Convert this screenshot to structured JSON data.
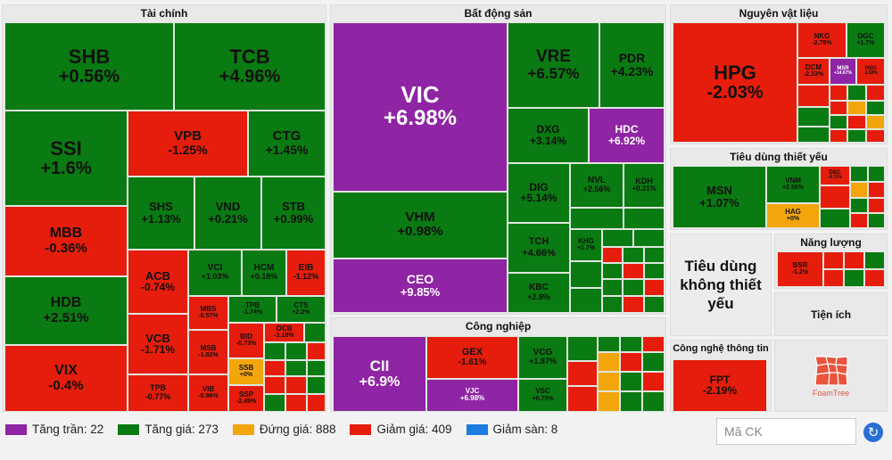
{
  "sectors": {
    "finance": "Tài chính",
    "realestate": "Bất động sản",
    "materials": "Nguyên vật liệu",
    "staples": "Tiêu dùng thiết yếu",
    "energy": "Năng lượng",
    "discretionary": "Tiêu dùng không thiết yếu",
    "utilities": "Tiện ích",
    "industrial": "Công nghiệp",
    "it": "Công nghệ thông tin"
  },
  "stocks": {
    "shb": {
      "sym": "SHB",
      "chg": "+0.56%"
    },
    "tcb": {
      "sym": "TCB",
      "chg": "+4.96%"
    },
    "ssi": {
      "sym": "SSI",
      "chg": "+1.6%"
    },
    "vpb": {
      "sym": "VPB",
      "chg": "-1.25%"
    },
    "ctg": {
      "sym": "CTG",
      "chg": "+1.45%"
    },
    "mbb": {
      "sym": "MBB",
      "chg": "-0.36%"
    },
    "shs": {
      "sym": "SHS",
      "chg": "+1.13%"
    },
    "vnd": {
      "sym": "VND",
      "chg": "+0.21%"
    },
    "stb": {
      "sym": "STB",
      "chg": "+0.99%"
    },
    "hdb": {
      "sym": "HDB",
      "chg": "+2.51%"
    },
    "acb": {
      "sym": "ACB",
      "chg": "-0.74%"
    },
    "vci": {
      "sym": "VCI",
      "chg": "+1.03%"
    },
    "hcm": {
      "sym": "HCM",
      "chg": "+0.18%"
    },
    "eib": {
      "sym": "EIB",
      "chg": "-1.12%"
    },
    "mbs": {
      "sym": "MBS",
      "chg": "-0.57%"
    },
    "tpb2": {
      "sym": "TPB",
      "chg": "-1.74%"
    },
    "ctd": {
      "sym": "CTS",
      "chg": "+2.2%"
    },
    "vix": {
      "sym": "VIX",
      "chg": "-0.4%"
    },
    "vcb": {
      "sym": "VCB",
      "chg": "-1.71%"
    },
    "msb": {
      "sym": "MSB",
      "chg": "-1.82%"
    },
    "bid": {
      "sym": "BID",
      "chg": "-0.73%"
    },
    "ssb": {
      "sym": "SSB",
      "chg": "+0%"
    },
    "tpb": {
      "sym": "TPB",
      "chg": "-0.77%"
    },
    "vib": {
      "sym": "VIB",
      "chg": "-0.96%"
    },
    "ssp": {
      "sym": "SSP",
      "chg": "-2.49%"
    },
    "ocb": {
      "sym": "OCB",
      "chg": "-1.18%"
    },
    "vic": {
      "sym": "VIC",
      "chg": "+6.98%"
    },
    "vre": {
      "sym": "VRE",
      "chg": "+6.57%"
    },
    "pdr": {
      "sym": "PDR",
      "chg": "+4.23%"
    },
    "dxg": {
      "sym": "DXG",
      "chg": "+3.14%"
    },
    "hdc": {
      "sym": "HDC",
      "chg": "+6.92%"
    },
    "vhm": {
      "sym": "VHM",
      "chg": "+0.98%"
    },
    "dig": {
      "sym": "DIG",
      "chg": "+5.14%"
    },
    "nvl": {
      "sym": "NVL",
      "chg": "+2.56%"
    },
    "kdh": {
      "sym": "KDH",
      "chg": "+0.31%"
    },
    "ceo": {
      "sym": "CEO",
      "chg": "+9.85%"
    },
    "tch": {
      "sym": "TCH",
      "chg": "+4.66%"
    },
    "kbc": {
      "sym": "KBC",
      "chg": "+2.8%"
    },
    "khg": {
      "sym": "KHG",
      "chg": "+1.7%"
    },
    "cii": {
      "sym": "CII",
      "chg": "+6.9%"
    },
    "gex": {
      "sym": "GEX",
      "chg": "-1.61%"
    },
    "vcg": {
      "sym": "VCG",
      "chg": "+1.87%"
    },
    "vjc": {
      "sym": "VJC",
      "chg": "+6.98%"
    },
    "vsc": {
      "sym": "VSC",
      "chg": "+0.75%"
    },
    "hpg": {
      "sym": "HPG",
      "chg": "-2.03%"
    },
    "nkg": {
      "sym": "NKG",
      "chg": "-2.79%"
    },
    "dgc": {
      "sym": "DGC",
      "chg": "+1.7%"
    },
    "dcm": {
      "sym": "DCM",
      "chg": "-2.33%"
    },
    "msr": {
      "sym": "MSR",
      "chg": "+14.67%"
    },
    "hsg": {
      "sym": "HSG",
      "chg": "-1.58%"
    },
    "msn": {
      "sym": "MSN",
      "chg": "+1.07%"
    },
    "vnm": {
      "sym": "VNM",
      "chg": "+2.56%"
    },
    "dbc": {
      "sym": "DBC",
      "chg": "-4.72%"
    },
    "hag": {
      "sym": "HAG",
      "chg": "+0%"
    },
    "bsr": {
      "sym": "BSR",
      "chg": "-1.2%"
    },
    "fpt": {
      "sym": "FPT",
      "chg": "-2.19%"
    }
  },
  "legend": [
    {
      "label": "Tăng trần: 22",
      "color": "#8f24a4"
    },
    {
      "label": "Tăng giá: 273",
      "color": "#0a7a12"
    },
    {
      "label": "Đứng giá: 888",
      "color": "#f3a60b"
    },
    {
      "label": "Giảm giá: 409",
      "color": "#e61d0c"
    },
    {
      "label": "Giảm sàn: 8",
      "color": "#1a7ee0"
    }
  ],
  "search": {
    "placeholder": "Mã CK"
  },
  "logo": {
    "text": "FoamTree"
  },
  "icons": {
    "refresh": "refresh-icon"
  }
}
